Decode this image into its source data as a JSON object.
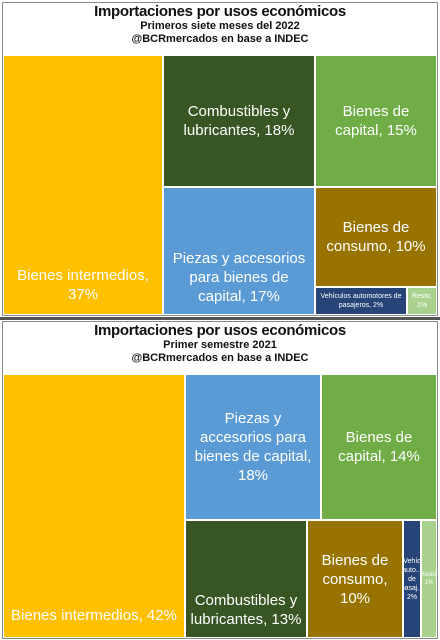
{
  "chart_data": [
    {
      "type": "treemap",
      "title": "Importaciones por usos económicos",
      "subtitle": "Primeros siete meses del 2022",
      "source": "@BCRmercados en base a INDEC",
      "items": [
        {
          "label": "Bienes intermedios, 37%",
          "value": 37,
          "color": "#FFC000"
        },
        {
          "label": "Combustibles y lubricantes, 18%",
          "value": 18,
          "color": "#375623"
        },
        {
          "label": "Piezas y accesorios para bienes de capital, 17%",
          "value": 17,
          "color": "#5B9BD5"
        },
        {
          "label": "Bienes de capital, 15%",
          "value": 15,
          "color": "#70AD47"
        },
        {
          "label": "Bienes de consumo, 10%",
          "value": 10,
          "color": "#997300"
        },
        {
          "label": "Vehículos automotores de pasajeros, 2%",
          "value": 2,
          "color": "#264478"
        },
        {
          "label": "Resto, 1%",
          "value": 1,
          "color": "#A9D18E"
        }
      ]
    },
    {
      "type": "treemap",
      "title": "Importaciones por usos económicos",
      "subtitle": "Primer semestre 2021",
      "source": "@BCRmercados en base a INDEC",
      "items": [
        {
          "label": "Bienes intermedios, 42%",
          "value": 42,
          "color": "#FFC000"
        },
        {
          "label": "Piezas y accesorios para bienes de capital, 18%",
          "value": 18,
          "color": "#5B9BD5"
        },
        {
          "label": "Bienes de capital, 14%",
          "value": 14,
          "color": "#70AD47"
        },
        {
          "label": "Combustibles y lubricantes, 13%",
          "value": 13,
          "color": "#375623"
        },
        {
          "label": "Bienes de consumo, 10%",
          "value": 10,
          "color": "#997300"
        },
        {
          "label": "Vehíc auto... de pasaj... 2%",
          "value": 2,
          "color": "#264478"
        },
        {
          "label": "Resto, 1%",
          "value": 1,
          "color": "#A9D18E"
        }
      ]
    }
  ]
}
